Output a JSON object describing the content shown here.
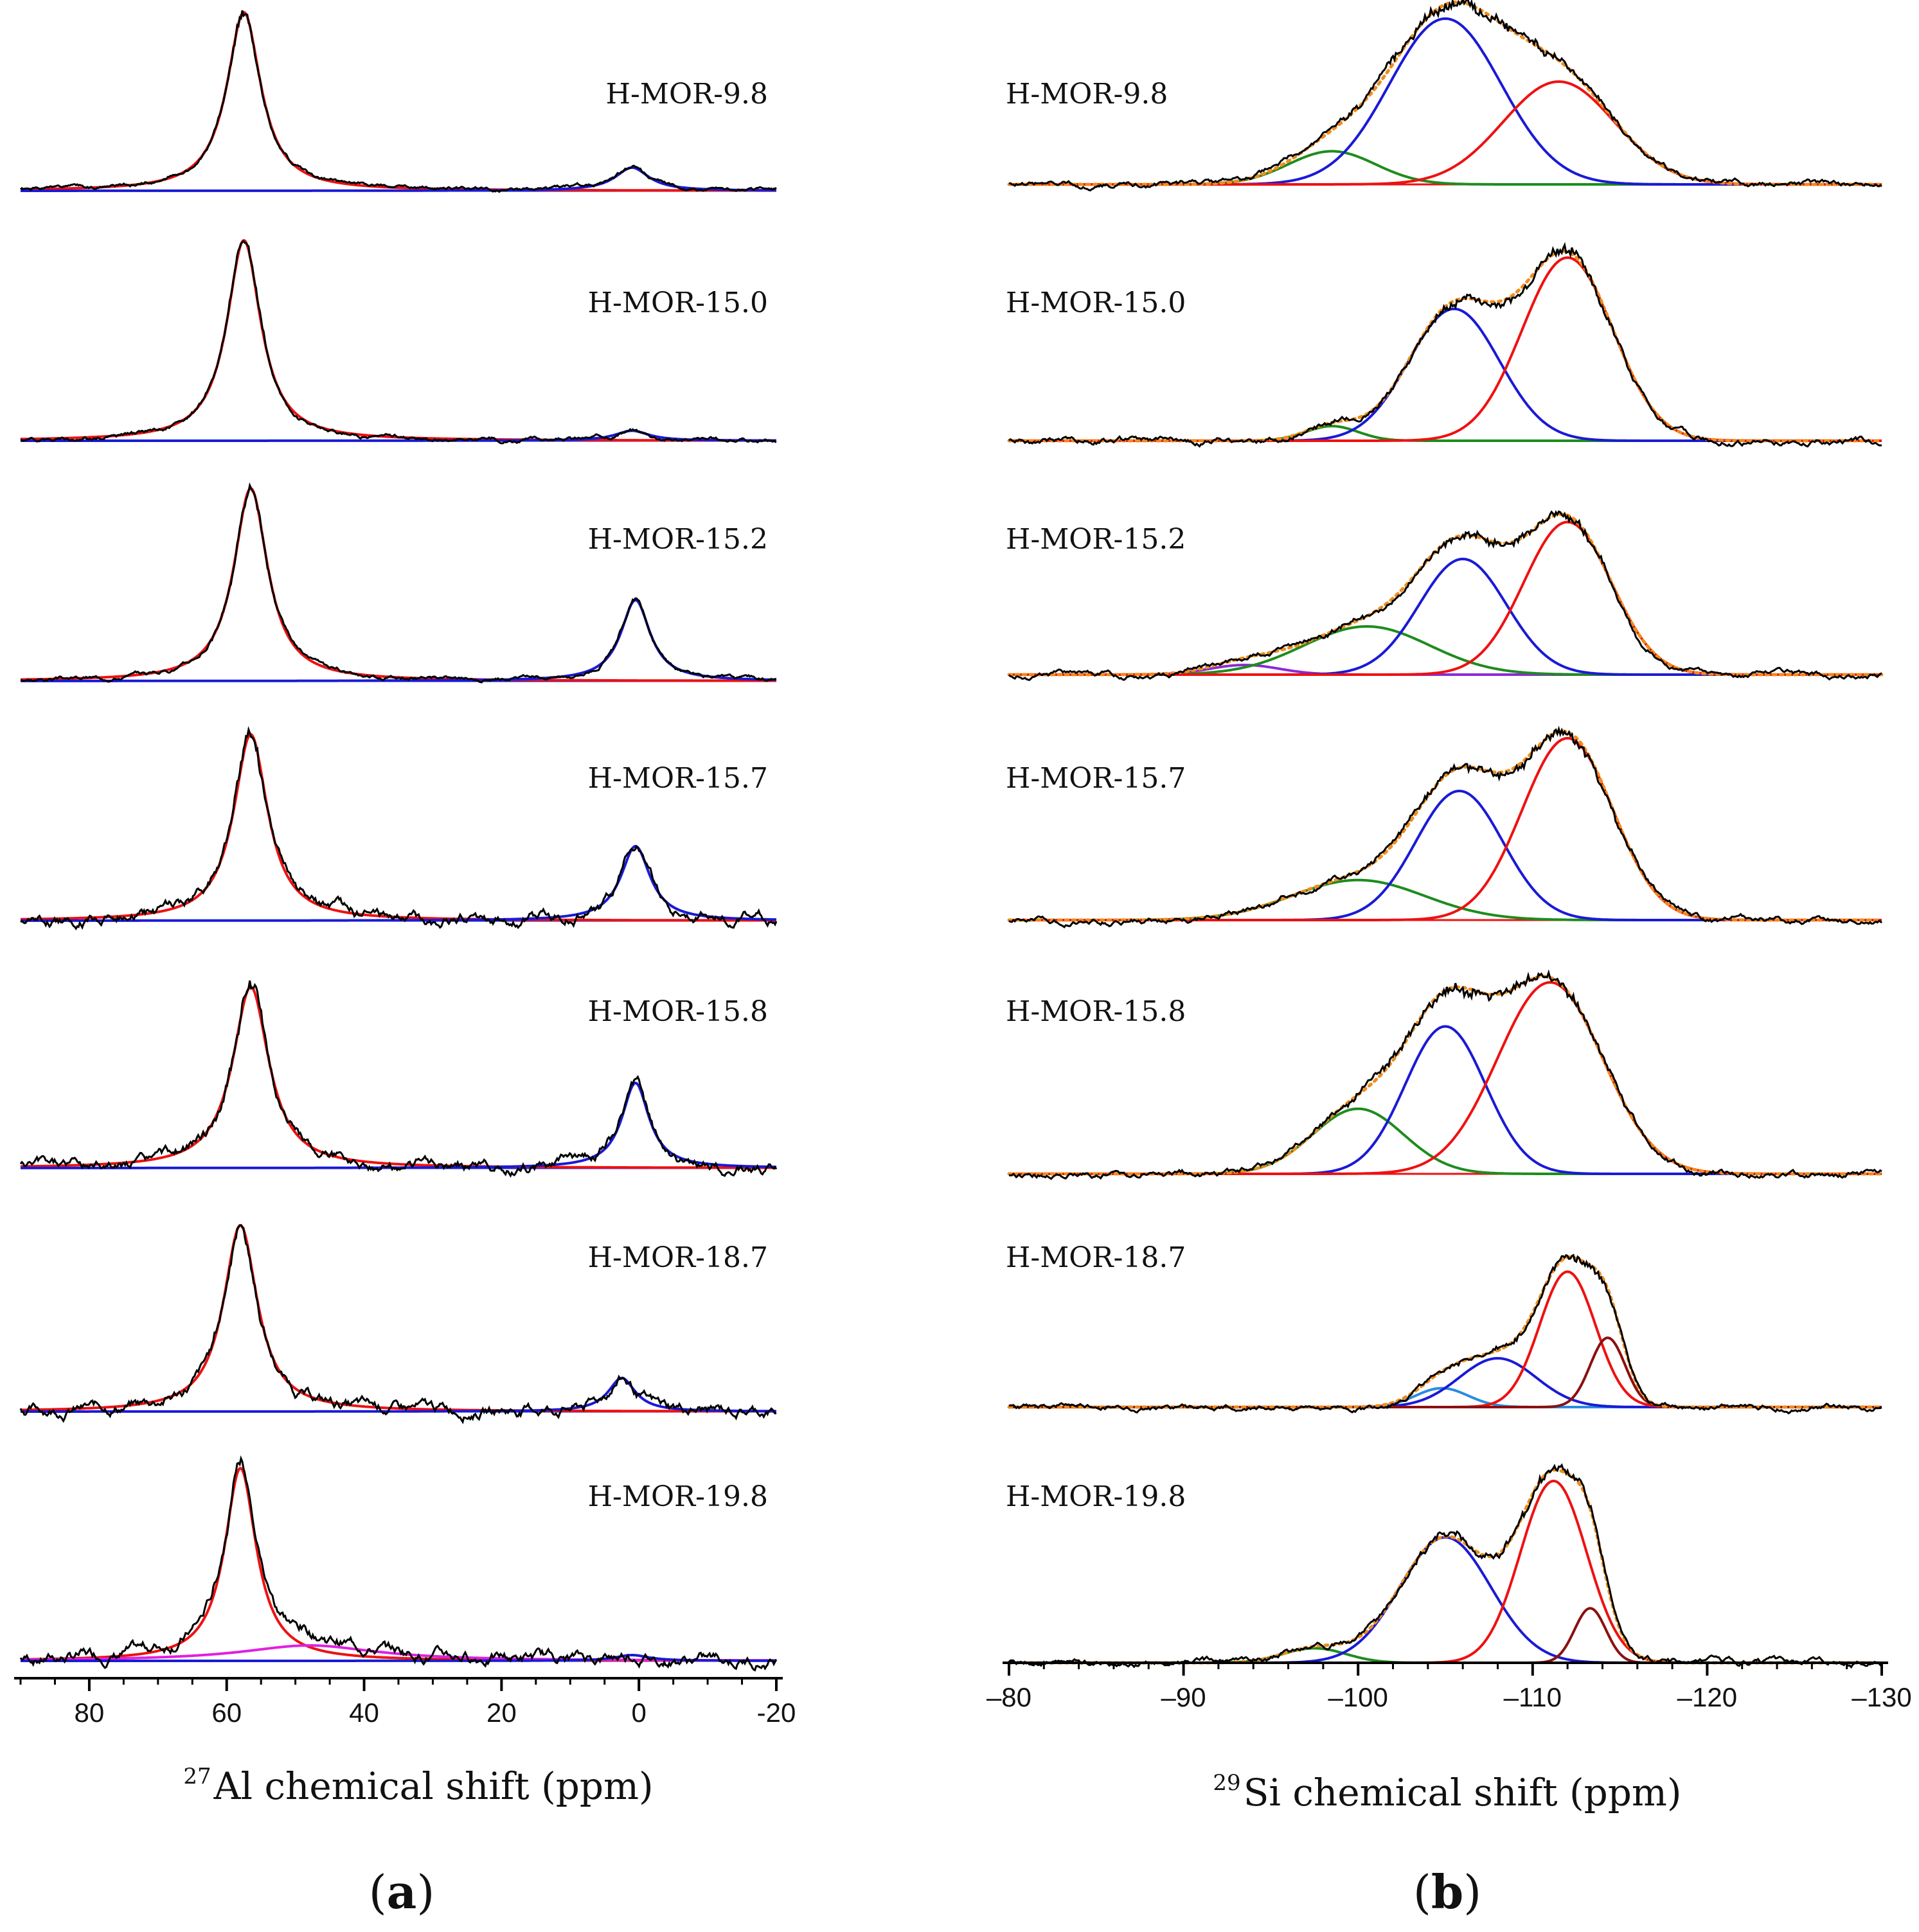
{
  "chart_data": [
    {
      "type": "line",
      "panel_label": "a",
      "xlabel_sup": "27",
      "xlabel_main": "Al chemical shift (ppm)",
      "xlim": [
        90,
        -20
      ],
      "xticks": [
        80,
        60,
        40,
        20,
        0,
        -20
      ],
      "series_colors": {
        "experimental": "#000000",
        "fit_tetrahedral": "#ee1111",
        "fit_octahedral": "#1a1ad6",
        "fit_distorted": "#e020e0"
      },
      "spectra": [
        {
          "label": "H-MOR-9.8",
          "peaks": [
            {
              "center": 57.5,
              "width": 3.0,
              "height": 1.0,
              "color": "#ee1111"
            },
            {
              "center": 1.0,
              "width": 3.0,
              "height": 0.13,
              "color": "#1a1ad6"
            }
          ]
        },
        {
          "label": "H-MOR-15.0",
          "peaks": [
            {
              "center": 57.5,
              "width": 3.0,
              "height": 1.0,
              "color": "#ee1111"
            },
            {
              "center": 1.0,
              "width": 3.0,
              "height": 0.05,
              "color": "#1a1ad6"
            }
          ]
        },
        {
          "label": "H-MOR-15.2",
          "peaks": [
            {
              "center": 56.5,
              "width": 3.0,
              "height": 1.0,
              "color": "#ee1111"
            },
            {
              "center": 0.5,
              "width": 2.6,
              "height": 0.42,
              "color": "#1a1ad6"
            }
          ]
        },
        {
          "label": "H-MOR-15.7",
          "peaks": [
            {
              "center": 56.5,
              "width": 3.0,
              "height": 1.0,
              "color": "#ee1111"
            },
            {
              "center": 0.5,
              "width": 2.6,
              "height": 0.4,
              "color": "#1a1ad6"
            }
          ]
        },
        {
          "label": "H-MOR-15.8",
          "peaks": [
            {
              "center": 56.5,
              "width": 3.2,
              "height": 1.0,
              "color": "#ee1111"
            },
            {
              "center": 0.5,
              "width": 2.4,
              "height": 0.47,
              "color": "#1a1ad6"
            }
          ]
        },
        {
          "label": "H-MOR-18.7",
          "peaks": [
            {
              "center": 58.0,
              "width": 3.0,
              "height": 1.0,
              "color": "#ee1111"
            },
            {
              "center": 2.5,
              "width": 2.4,
              "height": 0.18,
              "color": "#1a1ad6"
            }
          ]
        },
        {
          "label": "H-MOR-19.8",
          "peaks": [
            {
              "center": 58.0,
              "width": 2.8,
              "height": 1.0,
              "color": "#ee1111"
            },
            {
              "center": 48.0,
              "width": 12.0,
              "height": 0.08,
              "color": "#e020e0"
            },
            {
              "center": 1.0,
              "width": 3.0,
              "height": 0.03,
              "color": "#1a1ad6"
            }
          ]
        }
      ]
    },
    {
      "type": "line",
      "panel_label": "b",
      "xlabel_sup": "29",
      "xlabel_main": "Si chemical shift (ppm)",
      "xlim": [
        -80,
        -130
      ],
      "xticks": [
        -80,
        -90,
        -100,
        -110,
        -120,
        -130
      ],
      "series_colors": {
        "experimental": "#000000",
        "fit_sum": "#f08c1a",
        "Q4a": "#ee1111",
        "Q4b": "#1a1ad6",
        "Q3": "#1e8c1e",
        "Q2": "#8c2ad6",
        "extra_light_blue": "#2a8ce0",
        "extra_dark_red": "#8b1010"
      },
      "spectra": [
        {
          "label": "H-MOR-9.8",
          "peaks": [
            {
              "center": -98.5,
              "width": 2.5,
              "height": 0.2,
              "color": "#1e8c1e"
            },
            {
              "center": -105.0,
              "width": 3.2,
              "height": 1.0,
              "color": "#1a1ad6"
            },
            {
              "center": -111.5,
              "width": 3.2,
              "height": 0.62,
              "color": "#ee1111"
            }
          ]
        },
        {
          "label": "H-MOR-15.0",
          "peaks": [
            {
              "center": -98.5,
              "width": 1.5,
              "height": 0.08,
              "color": "#1e8c1e"
            },
            {
              "center": -105.5,
              "width": 2.6,
              "height": 0.72,
              "color": "#1a1ad6"
            },
            {
              "center": -112.0,
              "width": 2.6,
              "height": 1.0,
              "color": "#ee1111"
            }
          ]
        },
        {
          "label": "H-MOR-15.2",
          "peaks": [
            {
              "center": -93.5,
              "width": 2.0,
              "height": 0.06,
              "color": "#8c2ad6"
            },
            {
              "center": -100.5,
              "width": 3.6,
              "height": 0.3,
              "color": "#1e8c1e"
            },
            {
              "center": -106.0,
              "width": 2.5,
              "height": 0.72,
              "color": "#1a1ad6"
            },
            {
              "center": -112.0,
              "width": 2.5,
              "height": 0.95,
              "color": "#ee1111"
            }
          ]
        },
        {
          "label": "H-MOR-15.7",
          "peaks": [
            {
              "center": -100.0,
              "width": 3.8,
              "height": 0.22,
              "color": "#1e8c1e"
            },
            {
              "center": -105.8,
              "width": 2.5,
              "height": 0.71,
              "color": "#1a1ad6"
            },
            {
              "center": -112.0,
              "width": 2.6,
              "height": 1.0,
              "color": "#ee1111"
            }
          ]
        },
        {
          "label": "H-MOR-15.8",
          "peaks": [
            {
              "center": -100.0,
              "width": 2.6,
              "height": 0.34,
              "color": "#1e8c1e"
            },
            {
              "center": -105.0,
              "width": 2.3,
              "height": 0.77,
              "color": "#1a1ad6"
            },
            {
              "center": -111.0,
              "width": 3.0,
              "height": 1.0,
              "color": "#ee1111"
            }
          ]
        },
        {
          "label": "H-MOR-18.7",
          "peaks": [
            {
              "center": -104.8,
              "width": 1.5,
              "height": 0.12,
              "color": "#2a8ce0"
            },
            {
              "center": -108.0,
              "width": 2.2,
              "height": 0.31,
              "color": "#1a1ad6"
            },
            {
              "center": -112.0,
              "width": 1.6,
              "height": 0.86,
              "color": "#ee1111"
            },
            {
              "center": -114.3,
              "width": 1.0,
              "height": 0.44,
              "color": "#8b1010"
            }
          ]
        },
        {
          "label": "H-MOR-19.8",
          "peaks": [
            {
              "center": -97.5,
              "width": 1.8,
              "height": 0.08,
              "color": "#1e8c1e"
            },
            {
              "center": -105.0,
              "width": 2.6,
              "height": 0.69,
              "color": "#1a1ad6"
            },
            {
              "center": -111.2,
              "width": 1.9,
              "height": 1.0,
              "color": "#ee1111"
            },
            {
              "center": -113.3,
              "width": 0.9,
              "height": 0.3,
              "color": "#8b1010"
            }
          ]
        }
      ]
    }
  ]
}
